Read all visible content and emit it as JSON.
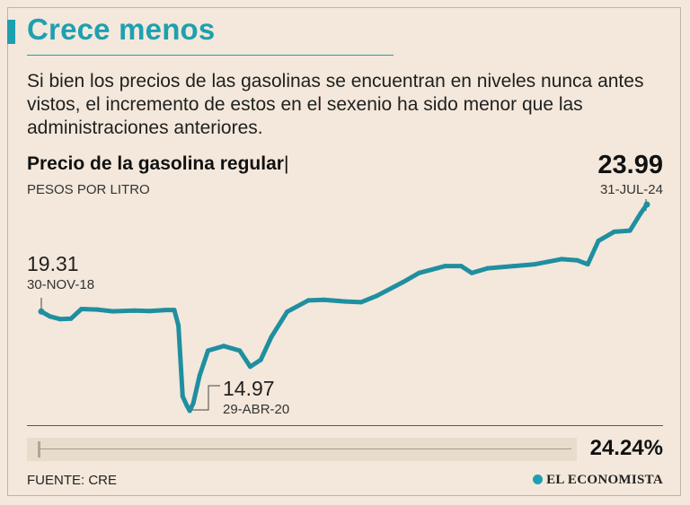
{
  "header": {
    "title": "Crece menos",
    "subtitle": "Si bien los precios de las gasolinas se encuentran en niveles nunca antes vistos, el incremento de estos en el sexenio ha sido menor que las administraciones anteriores."
  },
  "chart": {
    "title": "Precio de la gasolina regular",
    "cursor": "|",
    "unit_label": "PESOS POR LITRO",
    "last_value": "23.99",
    "last_date": "31-JUL-24",
    "start_value": "19.31",
    "start_date": "30-NOV-18",
    "min_value": "14.97",
    "min_date": "29-ABR-20",
    "change_label": "24.24%",
    "change_fraction": 0.2424
  },
  "footer": {
    "source": "FUENTE: CRE",
    "brand": "EL ECONOMISTA"
  },
  "colors": {
    "accent": "#1ea0b0",
    "line": "#1f8fa0",
    "background": "#f3e8db"
  },
  "chart_data": {
    "type": "line",
    "title": "Precio de la gasolina regular",
    "ylabel": "PESOS POR LITRO",
    "xlabel": "",
    "ylim": [
      14.5,
      24.5
    ],
    "grid": false,
    "legend": "none",
    "series": [
      {
        "values": [
          [
            2018.92,
            19.31
          ],
          [
            2019.0,
            19.1
          ],
          [
            2019.1,
            18.98
          ],
          [
            2019.2,
            19.0
          ],
          [
            2019.3,
            19.42
          ],
          [
            2019.45,
            19.4
          ],
          [
            2019.6,
            19.32
          ],
          [
            2019.8,
            19.35
          ],
          [
            2019.95,
            19.33
          ],
          [
            2020.1,
            19.38
          ],
          [
            2020.18,
            19.38
          ],
          [
            2020.22,
            18.7
          ],
          [
            2020.26,
            15.6
          ],
          [
            2020.3,
            15.2
          ],
          [
            2020.327,
            14.97
          ],
          [
            2020.36,
            15.3
          ],
          [
            2020.42,
            16.5
          ],
          [
            2020.5,
            17.6
          ],
          [
            2020.65,
            17.8
          ],
          [
            2020.8,
            17.6
          ],
          [
            2020.9,
            16.9
          ],
          [
            2021.0,
            17.2
          ],
          [
            2021.1,
            18.2
          ],
          [
            2021.25,
            19.3
          ],
          [
            2021.45,
            19.8
          ],
          [
            2021.6,
            19.82
          ],
          [
            2021.8,
            19.75
          ],
          [
            2021.95,
            19.72
          ],
          [
            2022.1,
            20.0
          ],
          [
            2022.35,
            20.6
          ],
          [
            2022.5,
            21.0
          ],
          [
            2022.75,
            21.3
          ],
          [
            2022.9,
            21.3
          ],
          [
            2023.0,
            21.0
          ],
          [
            2023.15,
            21.2
          ],
          [
            2023.4,
            21.3
          ],
          [
            2023.6,
            21.38
          ],
          [
            2023.85,
            21.6
          ],
          [
            2024.0,
            21.55
          ],
          [
            2024.1,
            21.38
          ],
          [
            2024.2,
            22.4
          ],
          [
            2024.35,
            22.8
          ],
          [
            2024.5,
            22.85
          ],
          [
            2024.6,
            23.6
          ],
          [
            2024.66,
            23.99
          ]
        ]
      }
    ],
    "annotations": [
      {
        "label": "19.31",
        "date": "30-NOV-18"
      },
      {
        "label": "14.97",
        "date": "29-ABR-20"
      },
      {
        "label": "23.99",
        "date": "31-JUL-24"
      }
    ]
  }
}
